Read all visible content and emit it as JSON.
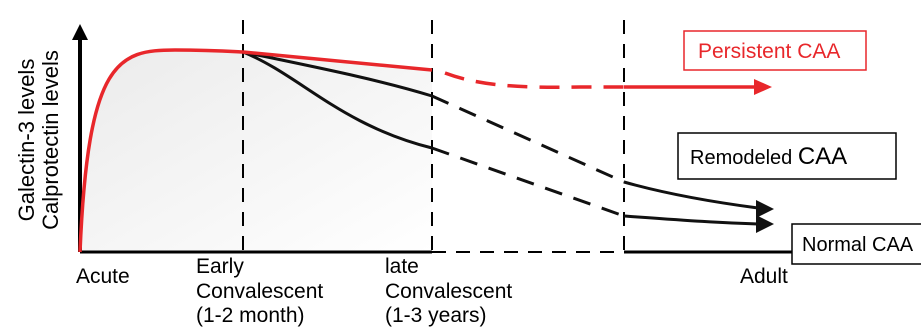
{
  "y_axis": {
    "line1": "Galectin-3 levels",
    "line2": "Calprotectin levels"
  },
  "x_axis": {
    "acute": "Acute",
    "early": [
      "Early",
      "Convalescent",
      "(1-2 month)"
    ],
    "late": [
      "late",
      "Convalescent",
      "(1-3 years)"
    ],
    "adult": "Adult"
  },
  "outcomes": {
    "persistent": "Persistent CAA",
    "remodeled_prefix": "Remodeled ",
    "remodeled_suffix": "CAA",
    "normal": "Normal CAA"
  },
  "colors": {
    "persistent": "#e8272b",
    "other": "#111111",
    "shade": "#efefef"
  }
}
